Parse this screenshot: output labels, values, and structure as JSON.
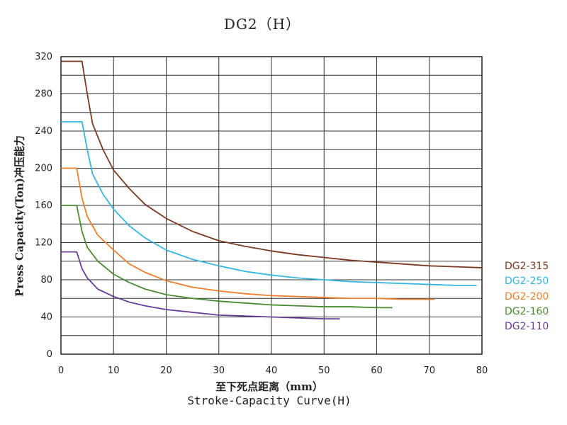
{
  "chart_data": {
    "type": "line",
    "title": "DG2（H）",
    "xlabel_cn": "至下死点距离（mm）",
    "xlabel_en": "Stroke-Capacity Curve(H)",
    "ylabel": "Press Capacity(Ton)冲压能力",
    "xlim": [
      0,
      80
    ],
    "ylim": [
      0,
      320
    ],
    "xticks": [
      0,
      10,
      20,
      30,
      40,
      50,
      60,
      70,
      80
    ],
    "yticks": [
      0,
      40,
      80,
      120,
      160,
      200,
      240,
      280,
      320
    ],
    "grid": true,
    "legend_position": "right",
    "series": [
      {
        "name": "DG2-315",
        "color": "#7a3a22",
        "x": [
          0,
          4,
          5,
          6,
          8,
          10,
          13,
          16,
          20,
          25,
          30,
          35,
          40,
          45,
          50,
          55,
          60,
          65,
          70,
          75,
          80
        ],
        "y": [
          315,
          315,
          280,
          248,
          220,
          198,
          178,
          161,
          146,
          132,
          122,
          116,
          111,
          107,
          104,
          101,
          99,
          97,
          95,
          94,
          93
        ]
      },
      {
        "name": "DG2-250",
        "color": "#35b6e3",
        "x": [
          0,
          4,
          5,
          6,
          8,
          10,
          13,
          16,
          20,
          25,
          30,
          35,
          40,
          45,
          50,
          55,
          60,
          65,
          70,
          75,
          79
        ],
        "y": [
          250,
          250,
          220,
          194,
          172,
          156,
          138,
          125,
          112,
          102,
          95,
          89,
          85,
          82,
          80,
          78,
          77,
          76,
          75,
          74,
          74
        ]
      },
      {
        "name": "DG2-200",
        "color": "#f07f2c",
        "x": [
          0,
          3,
          4,
          5,
          7,
          10,
          13,
          16,
          20,
          25,
          30,
          35,
          40,
          45,
          50,
          55,
          60,
          65,
          71
        ],
        "y": [
          200,
          200,
          168,
          148,
          128,
          112,
          97,
          88,
          79,
          72,
          68,
          65,
          63,
          62,
          61,
          60,
          60,
          59,
          59
        ]
      },
      {
        "name": "DG2-160",
        "color": "#4a8a33",
        "x": [
          0,
          3,
          4,
          5,
          7,
          10,
          13,
          16,
          20,
          25,
          30,
          35,
          40,
          45,
          50,
          55,
          60,
          63
        ],
        "y": [
          160,
          160,
          132,
          115,
          100,
          86,
          77,
          70,
          64,
          60,
          57,
          55,
          53,
          52,
          51,
          51,
          50,
          50
        ]
      },
      {
        "name": "DG2-110",
        "color": "#6a3e9a",
        "x": [
          0,
          3,
          4,
          5,
          7,
          10,
          13,
          16,
          20,
          25,
          30,
          35,
          40,
          45,
          50,
          53
        ],
        "y": [
          110,
          110,
          92,
          82,
          70,
          62,
          56,
          52,
          48,
          45,
          42,
          41,
          40,
          39,
          38,
          38
        ]
      }
    ]
  }
}
